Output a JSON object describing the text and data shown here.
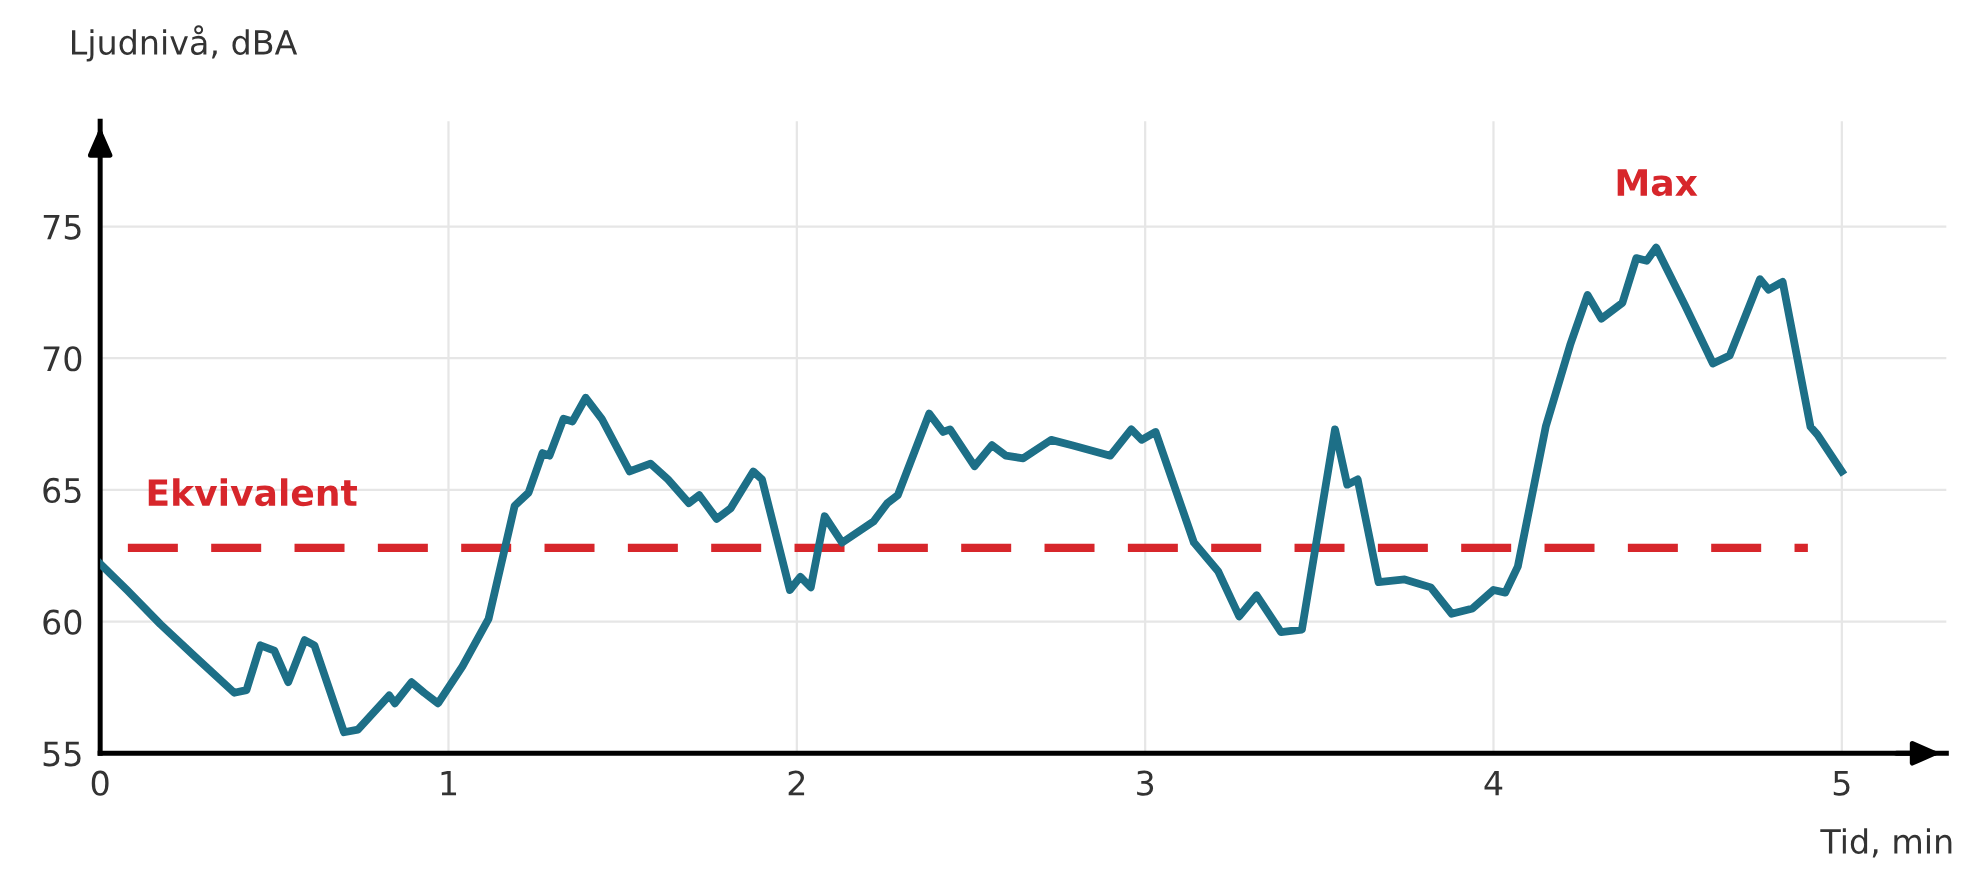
{
  "chart_data": {
    "type": "line",
    "xlabel": "Tid, min",
    "ylabel": "Ljudnivå, dBA",
    "xlim": [
      0,
      5.3
    ],
    "ylim": [
      55,
      79
    ],
    "xticks": [
      0,
      1,
      2,
      3,
      4,
      5
    ],
    "yticks": [
      55,
      60,
      65,
      70,
      75
    ],
    "grid": true,
    "marker": "none",
    "line_style": "solid",
    "series": [
      {
        "color": "#1d6f87",
        "x": [
          0,
          0.077,
          0.173,
          0.27,
          0.385,
          0.42,
          0.46,
          0.5,
          0.54,
          0.587,
          0.615,
          0.7,
          0.74,
          0.83,
          0.846,
          0.894,
          0.93,
          0.97,
          1.04,
          1.115,
          1.19,
          1.23,
          1.27,
          1.29,
          1.33,
          1.356,
          1.394,
          1.44,
          1.52,
          1.58,
          1.63,
          1.69,
          1.72,
          1.77,
          1.81,
          1.875,
          1.9,
          1.98,
          2.01,
          2.04,
          2.08,
          2.13,
          2.22,
          2.26,
          2.29,
          2.38,
          2.42,
          2.44,
          2.51,
          2.56,
          2.6,
          2.65,
          2.73,
          2.79,
          2.9,
          2.96,
          2.99,
          3.03,
          3.14,
          3.21,
          3.27,
          3.32,
          3.39,
          3.45,
          3.545,
          3.58,
          3.61,
          3.67,
          3.745,
          3.82,
          3.88,
          3.94,
          4.0,
          4.034,
          4.07,
          4.15,
          4.22,
          4.27,
          4.31,
          4.37,
          4.41,
          4.44,
          4.467,
          4.55,
          4.63,
          4.678,
          4.765,
          4.79,
          4.83,
          4.91,
          4.93,
          5.0
        ],
        "values": [
          62.2,
          61.2,
          59.9,
          58.7,
          57.3,
          57.4,
          59.1,
          58.9,
          57.7,
          59.3,
          59.1,
          55.8,
          55.9,
          57.2,
          56.9,
          57.7,
          57.3,
          56.9,
          58.3,
          60.1,
          64.4,
          64.9,
          66.4,
          66.3,
          67.7,
          67.6,
          68.5,
          67.7,
          65.7,
          66.0,
          65.4,
          64.5,
          64.8,
          63.9,
          64.3,
          65.7,
          65.4,
          61.2,
          61.7,
          61.3,
          64.0,
          63.0,
          63.8,
          64.5,
          64.8,
          67.9,
          67.2,
          67.3,
          65.9,
          66.7,
          66.3,
          66.2,
          66.9,
          66.7,
          66.3,
          67.3,
          66.9,
          67.2,
          63.0,
          61.9,
          60.2,
          61.0,
          59.6,
          59.7,
          67.3,
          65.2,
          65.4,
          61.5,
          61.6,
          61.3,
          60.3,
          60.5,
          61.2,
          61.1,
          62.1,
          67.4,
          70.5,
          72.4,
          71.5,
          72.1,
          73.8,
          73.7,
          74.2,
          72.0,
          69.8,
          70.1,
          73.0,
          72.6,
          72.9,
          67.4,
          67.1,
          65.7
        ]
      }
    ],
    "ref_lines": [
      {
        "axis": "y",
        "value": 62.8,
        "label": "Ekvivalent",
        "color": "#d7262b",
        "line_style": "dashed"
      }
    ],
    "annotations": [
      {
        "text": "Max",
        "x": 4.467,
        "y": 74.2
      }
    ]
  }
}
